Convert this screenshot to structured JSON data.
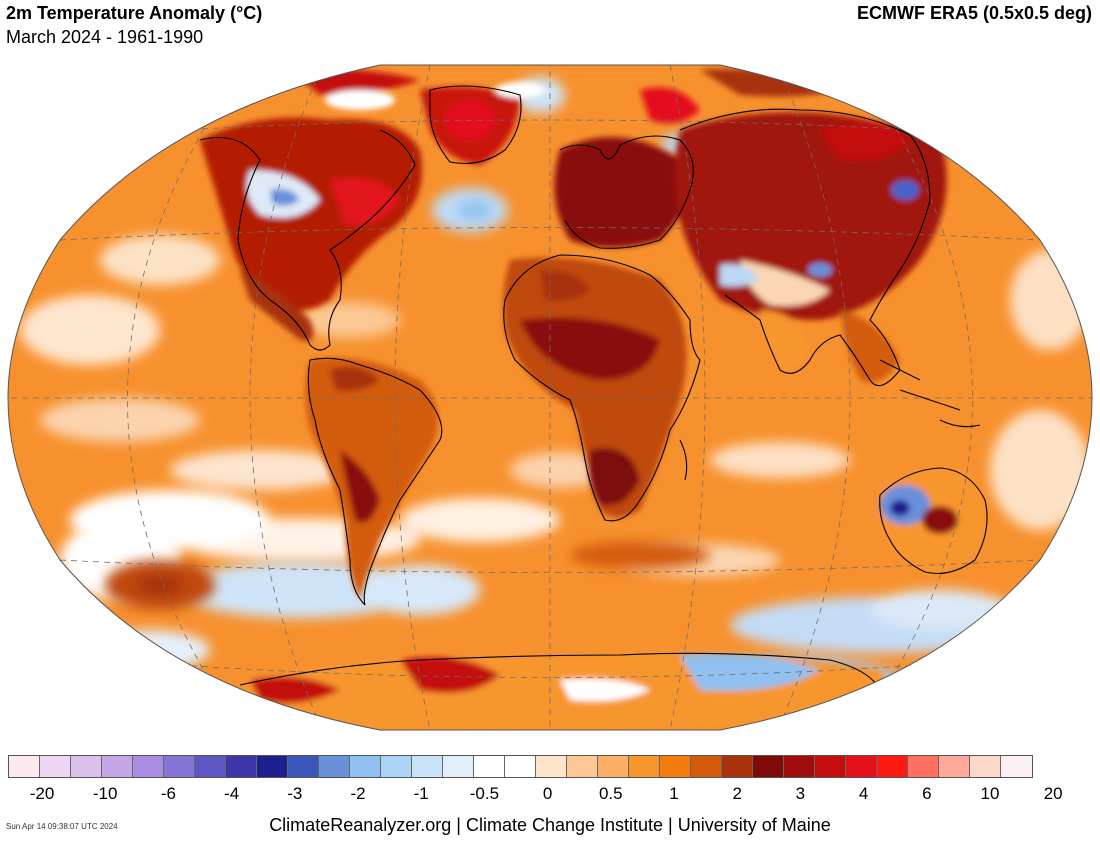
{
  "header": {
    "title": "2m Temperature Anomaly (°C)",
    "subtitle": "March 2024 - 1961-1990",
    "dataset": "ECMWF ERA5 (0.5x0.5 deg)"
  },
  "colors": {
    "ocean_warm": "#f7912e",
    "hot": "#b41a06",
    "very_hot": "#8a0a0a",
    "extreme": "#e6121b",
    "cool": "#a8d0f4",
    "cold": "#4a62c8",
    "neutral": "#ffffff",
    "coast": "#000000"
  },
  "legend": {
    "colors": [
      "#fde9f1",
      "#ecd6f1",
      "#dac0ec",
      "#c5a6e6",
      "#a98de2",
      "#8574d6",
      "#5d57c4",
      "#3c36a8",
      "#1c1f8e",
      "#3a56b8",
      "#6a90da",
      "#90c1f0",
      "#acd3f5",
      "#c8e3f8",
      "#e2effa",
      "#ffffff",
      "#ffffff",
      "#ffe4cc",
      "#fdc895",
      "#fbae66",
      "#f8962e",
      "#f47c0e",
      "#d45b0b",
      "#a8320b",
      "#7e0a0a",
      "#a00c0c",
      "#c40e0e",
      "#e4101c",
      "#fe1a10",
      "#ff6f62",
      "#fea89a",
      "#fcd8c8",
      "#fdf0f2"
    ],
    "labels": [
      "-20",
      "-10",
      "-6",
      "-4",
      "-3",
      "-2",
      "-1",
      "-0.5",
      "0",
      "0.5",
      "1",
      "2",
      "3",
      "4",
      "6",
      "10",
      "20"
    ]
  },
  "footer": {
    "timestamp": "Sun Apr 14 09:38:07 UTC 2024",
    "credit": "ClimateReanalyzer.org | Climate Change Institute | University of Maine"
  }
}
